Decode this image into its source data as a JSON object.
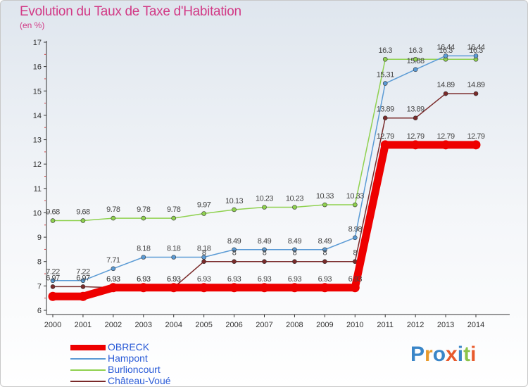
{
  "header": {
    "title": "Evolution du Taux de Taxe d'Habitation",
    "unit": "(en %)"
  },
  "logo": {
    "text": "Proxiti",
    "colors": [
      "#3a86c8",
      "#e89a2c",
      "#3a86c8",
      "#e85a2c",
      "#3a86c8",
      "#8bc34a",
      "#e85a2c"
    ]
  },
  "chart_data": {
    "type": "line",
    "x": [
      "2000",
      "2001",
      "2002",
      "2003",
      "2004",
      "2005",
      "2006",
      "2007",
      "2008",
      "2009",
      "2010",
      "2011",
      "2012",
      "2013",
      "2014"
    ],
    "ylim": [
      6,
      17
    ],
    "yticks": [
      "6",
      "7",
      "8",
      "9",
      "10",
      "11",
      "12",
      "13",
      "14",
      "15",
      "16",
      "17"
    ],
    "grid": false,
    "legend_position": "bottom-left",
    "series": [
      {
        "name": "OBRECK",
        "color": "#ee0000",
        "values": [
          6.57,
          6.57,
          6.93,
          6.93,
          6.93,
          6.93,
          6.93,
          6.93,
          6.93,
          6.93,
          6.93,
          12.79,
          12.79,
          12.79,
          12.79
        ],
        "labels": [
          "",
          "",
          "6.93",
          "6.93",
          "6.93",
          "6.93",
          "6.93",
          "6.93",
          "6.93",
          "6.93",
          "6.93",
          "12.79",
          "12.79",
          "12.79",
          "12.79"
        ]
      },
      {
        "name": "Hampont",
        "color": "#5b9bd5",
        "values": [
          7.22,
          7.22,
          7.71,
          8.18,
          8.18,
          8.18,
          8.49,
          8.49,
          8.49,
          8.49,
          8.98,
          15.31,
          15.88,
          16.44,
          16.44
        ],
        "labels": [
          "7.22",
          "7.22",
          "7.71",
          "8.18",
          "8.18",
          "8.18",
          "8.49",
          "8.49",
          "8.49",
          "8.49",
          "8.98",
          "15.31",
          "15.88",
          "16.44",
          "16.44"
        ]
      },
      {
        "name": "Burlioncourt",
        "color": "#8fd14f",
        "values": [
          9.68,
          9.68,
          9.78,
          9.78,
          9.78,
          9.97,
          10.13,
          10.23,
          10.23,
          10.33,
          10.33,
          16.3,
          16.3,
          16.3,
          16.3
        ],
        "labels": [
          "9.68",
          "9.68",
          "9.78",
          "9.78",
          "9.78",
          "9.97",
          "10.13",
          "10.23",
          "10.23",
          "10.33",
          "10.33",
          "16.3",
          "16.3",
          "16.3",
          "16.3"
        ]
      },
      {
        "name": "Château-Voué",
        "color": "#7a2a2a",
        "values": [
          6.97,
          6.97,
          6.93,
          6.93,
          6.93,
          8,
          8,
          8,
          8,
          8,
          8,
          13.89,
          13.89,
          14.89,
          14.89
        ],
        "labels": [
          "6.97",
          "6.97",
          "6.93",
          "6.93",
          "6.93",
          "8",
          "8",
          "8",
          "8",
          "8",
          "8",
          "13.89",
          "13.89",
          "14.89",
          "14.89"
        ]
      }
    ]
  }
}
